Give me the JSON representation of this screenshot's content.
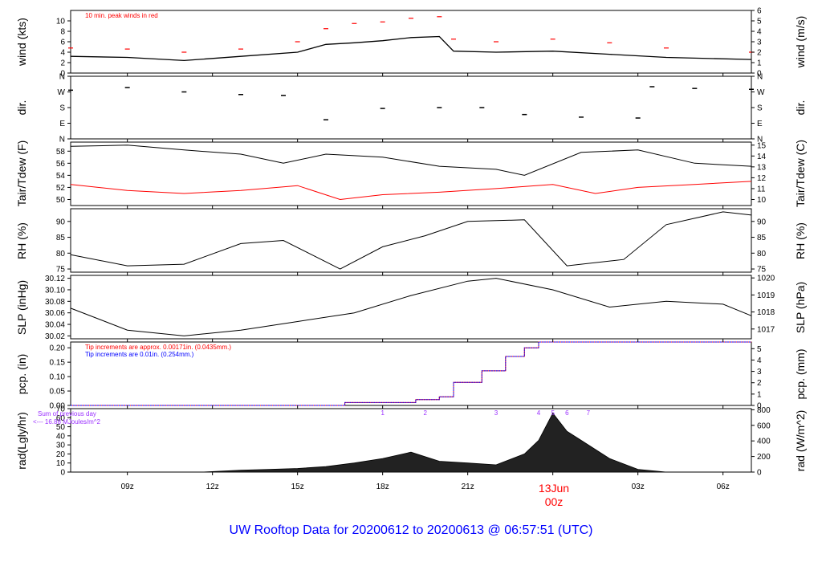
{
  "chart_data": {
    "type": "line",
    "title": "UW Rooftop Data for 20200612  to  20200613 @ 06:57:51  (UTC)",
    "date_marker": {
      "label": "13Jun",
      "sublabel": "00z"
    },
    "x": {
      "unit": "hours UTC",
      "range": [
        "2020-06-12 07:00",
        "2020-06-13 07:00"
      ],
      "ticks": [
        {
          "time": "2020-06-12 09:00",
          "label": "09z"
        },
        {
          "time": "2020-06-12 12:00",
          "label": "12z"
        },
        {
          "time": "2020-06-12 15:00",
          "label": "15z"
        },
        {
          "time": "2020-06-12 18:00",
          "label": "18z"
        },
        {
          "time": "2020-06-12 21:00",
          "label": "21z"
        },
        {
          "time": "2020-06-13 00:00",
          "label": ""
        },
        {
          "time": "2020-06-13 03:00",
          "label": "03z"
        },
        {
          "time": "2020-06-13 06:00",
          "label": "06z"
        }
      ]
    },
    "colors": {
      "primary": "#000000",
      "dewpoint": "#ff0000",
      "gust": "#ff0000",
      "pcp_fine": "#ff0000",
      "pcp_coarse": "#0000ff",
      "accent": "#9b30ff",
      "title": "#0000ff"
    },
    "panels": [
      {
        "id": "wind",
        "ylabel_left": "wind (kts)",
        "ylabel_right": "wind (m/s)",
        "ylim": [
          0,
          12
        ],
        "ylim_right": [
          0,
          6
        ],
        "ticks_left": [
          "0",
          "2",
          "4",
          "6",
          "8",
          "10"
        ],
        "ticks_right": [
          "0",
          "1",
          "2",
          "3",
          "4",
          "5",
          "6"
        ],
        "annotation": "10 min. peak winds in red",
        "series": [
          {
            "name": "wind speed",
            "x": [
              "2020-06-12 07:00",
              "2020-06-12 09:00",
              "2020-06-12 11:00",
              "2020-06-12 13:00",
              "2020-06-12 15:00",
              "2020-06-12 16:00",
              "2020-06-12 17:00",
              "2020-06-12 18:00",
              "2020-06-12 19:00",
              "2020-06-12 20:00",
              "2020-06-12 20:30",
              "2020-06-12 22:00",
              "2020-06-13 00:00",
              "2020-06-13 02:00",
              "2020-06-13 04:00",
              "2020-06-13 07:00"
            ],
            "y": [
              3.2,
              3.0,
              2.4,
              3.2,
              4.0,
              5.5,
              5.8,
              6.2,
              6.8,
              7.0,
              4.2,
              4.0,
              4.2,
              3.6,
              3.0,
              2.6
            ]
          },
          {
            "name": "peak wind",
            "x": [
              "2020-06-12 07:00",
              "2020-06-12 09:00",
              "2020-06-12 11:00",
              "2020-06-12 13:00",
              "2020-06-12 15:00",
              "2020-06-12 16:00",
              "2020-06-12 17:00",
              "2020-06-12 18:00",
              "2020-06-12 19:00",
              "2020-06-12 20:00",
              "2020-06-12 20:30",
              "2020-06-12 22:00",
              "2020-06-13 00:00",
              "2020-06-13 02:00",
              "2020-06-13 04:00",
              "2020-06-13 07:00"
            ],
            "y": [
              4.8,
              4.6,
              4.0,
              4.6,
              6.0,
              8.5,
              9.5,
              9.8,
              10.5,
              10.8,
              6.5,
              6.0,
              6.5,
              5.8,
              4.8,
              4.0
            ]
          }
        ]
      },
      {
        "id": "dir",
        "ylabel_left": "dir.",
        "ylabel_right": "dir.",
        "ylim": [
          0,
          360
        ],
        "ticks": [
          "N",
          "E",
          "S",
          "W",
          "N"
        ],
        "tick_values": [
          0,
          90,
          180,
          270,
          360
        ],
        "series": [
          {
            "name": "wind direction",
            "x": [
              "2020-06-12 07:00",
              "2020-06-12 09:00",
              "2020-06-12 11:00",
              "2020-06-12 13:00",
              "2020-06-12 14:30",
              "2020-06-12 16:00",
              "2020-06-12 18:00",
              "2020-06-12 20:00",
              "2020-06-12 21:30",
              "2020-06-12 23:00",
              "2020-06-13 01:00",
              "2020-06-13 03:00",
              "2020-06-13 03:30",
              "2020-06-13 05:00",
              "2020-06-13 07:00"
            ],
            "y": [
              280,
              295,
              270,
              255,
              250,
              110,
              175,
              180,
              180,
              140,
              125,
              120,
              300,
              290,
              285
            ]
          }
        ]
      },
      {
        "id": "temp",
        "ylabel_left": "Tair/Tdew (F)",
        "ylabel_right": "Tair/Tdew (C)",
        "ylim": [
          49,
          59.5
        ],
        "ticks_left": [
          "50",
          "52",
          "54",
          "56",
          "58"
        ],
        "ticks_right": [
          "10",
          "11",
          "12",
          "13",
          "14",
          "15"
        ],
        "series": [
          {
            "name": "Tair",
            "x": [
              "2020-06-12 07:00",
              "2020-06-12 09:00",
              "2020-06-12 11:00",
              "2020-06-12 13:00",
              "2020-06-12 14:30",
              "2020-06-12 16:00",
              "2020-06-12 18:00",
              "2020-06-12 20:00",
              "2020-06-12 22:00",
              "2020-06-12 23:00",
              "2020-06-13 01:00",
              "2020-06-13 03:00",
              "2020-06-13 05:00",
              "2020-06-13 07:00"
            ],
            "y": [
              58.8,
              59.0,
              58.2,
              57.5,
              56.0,
              57.5,
              57.0,
              55.5,
              55.0,
              54.0,
              57.8,
              58.2,
              56.0,
              55.5
            ]
          },
          {
            "name": "Tdew",
            "x": [
              "2020-06-12 07:00",
              "2020-06-12 09:00",
              "2020-06-12 11:00",
              "2020-06-12 13:00",
              "2020-06-12 15:00",
              "2020-06-12 16:30",
              "2020-06-12 18:00",
              "2020-06-12 20:00",
              "2020-06-12 22:00",
              "2020-06-13 00:00",
              "2020-06-13 01:30",
              "2020-06-13 03:00",
              "2020-06-13 05:00",
              "2020-06-13 07:00"
            ],
            "y": [
              52.5,
              51.5,
              51.0,
              51.5,
              52.3,
              50.0,
              50.8,
              51.2,
              51.8,
              52.5,
              51.0,
              52.0,
              52.5,
              53.0
            ]
          }
        ]
      },
      {
        "id": "rh",
        "ylabel_left": "RH (%)",
        "ylabel_right": "RH (%)",
        "ylim": [
          74,
          94
        ],
        "ticks": [
          "75",
          "80",
          "85",
          "90"
        ],
        "tick_values": [
          75,
          80,
          85,
          90
        ],
        "series": [
          {
            "name": "RH",
            "x": [
              "2020-06-12 07:00",
              "2020-06-12 09:00",
              "2020-06-12 11:00",
              "2020-06-12 13:00",
              "2020-06-12 14:30",
              "2020-06-12 16:30",
              "2020-06-12 18:00",
              "2020-06-12 19:30",
              "2020-06-12 21:00",
              "2020-06-12 23:00",
              "2020-06-13 00:30",
              "2020-06-13 02:30",
              "2020-06-13 04:00",
              "2020-06-13 06:00",
              "2020-06-13 07:00"
            ],
            "y": [
              79.5,
              76.0,
              76.5,
              83.0,
              84.0,
              75.0,
              82.0,
              85.5,
              90.0,
              90.5,
              76.0,
              78.0,
              89.0,
              93.0,
              92.0
            ]
          }
        ]
      },
      {
        "id": "slp",
        "ylabel_left": "SLP (inHg)",
        "ylabel_right": "SLP (hPa)",
        "ylim": [
          30.015,
          30.125
        ],
        "ticks_left": [
          "30.02",
          "30.04",
          "30.06",
          "30.08",
          "30.10",
          "30.12"
        ],
        "ticks_right": [
          "1017",
          "1018",
          "1019",
          "1020"
        ],
        "series": [
          {
            "name": "SLP",
            "x": [
              "2020-06-12 07:00",
              "2020-06-12 09:00",
              "2020-06-12 11:00",
              "2020-06-12 13:00",
              "2020-06-12 15:00",
              "2020-06-12 17:00",
              "2020-06-12 19:00",
              "2020-06-12 21:00",
              "2020-06-12 22:00",
              "2020-06-13 00:00",
              "2020-06-13 02:00",
              "2020-06-13 04:00",
              "2020-06-13 06:00",
              "2020-06-13 07:00"
            ],
            "y": [
              30.068,
              30.03,
              30.02,
              30.03,
              30.045,
              30.06,
              30.09,
              30.115,
              30.12,
              30.1,
              30.07,
              30.08,
              30.075,
              30.055
            ]
          }
        ]
      },
      {
        "id": "pcp",
        "ylabel_left": "pcp. (in)",
        "ylabel_right": "pcp. (mm)",
        "ylim": [
          0,
          0.22
        ],
        "ticks_left": [
          "0.00",
          "0.05",
          "0.10",
          "0.15",
          "0.20"
        ],
        "ticks_right": [
          "0",
          "1",
          "2",
          "3",
          "4",
          "5"
        ],
        "annotations": [
          {
            "text": "Tip increments are approx. 0.00171in. (0.0435mm.)",
            "color": "#ff0000"
          },
          {
            "text": "Tip increments are 0.01in. (0.254mm.)",
            "color": "#0000ff"
          }
        ],
        "series": [
          {
            "name": "cumulative precipitation",
            "x": [
              "2020-06-12 07:00",
              "2020-06-12 16:40",
              "2020-06-12 19:10",
              "2020-06-12 20:00",
              "2020-06-12 20:30",
              "2020-06-12 21:30",
              "2020-06-12 22:20",
              "2020-06-12 23:00",
              "2020-06-12 23:30",
              "2020-06-13 07:00"
            ],
            "y": [
              0.0,
              0.01,
              0.02,
              0.03,
              0.08,
              0.12,
              0.17,
              0.2,
              0.22,
              0.22
            ]
          }
        ]
      },
      {
        "id": "rad",
        "ylabel_left": "rad(Lgly/hr)",
        "ylabel_right": "rad (W/m^2)",
        "ylim": [
          0,
          70
        ],
        "ticks_left": [
          "0",
          "10",
          "20",
          "30",
          "40",
          "50",
          "60",
          "70"
        ],
        "ticks_right": [
          "0",
          "200",
          "400",
          "600",
          "800"
        ],
        "annotation_lines": [
          "Sum of previous day",
          "<--- 16.88 MJoules/m^2"
        ],
        "hour_labels": [
          {
            "time": "2020-06-12 18:00",
            "label": "1"
          },
          {
            "time": "2020-06-12 19:30",
            "label": "2"
          },
          {
            "time": "2020-06-12 22:00",
            "label": "3"
          },
          {
            "time": "2020-06-12 23:30",
            "label": "4"
          },
          {
            "time": "2020-06-13 00:00",
            "label": "5"
          },
          {
            "time": "2020-06-13 00:30",
            "label": "6"
          },
          {
            "time": "2020-06-13 01:15",
            "label": "7"
          }
        ],
        "series": [
          {
            "name": "solar radiation",
            "x": [
              "2020-06-12 11:40",
              "2020-06-12 13:00",
              "2020-06-12 14:00",
              "2020-06-12 15:00",
              "2020-06-12 16:00",
              "2020-06-12 17:00",
              "2020-06-12 18:00",
              "2020-06-12 19:00",
              "2020-06-12 20:00",
              "2020-06-12 21:00",
              "2020-06-12 22:00",
              "2020-06-12 23:00",
              "2020-06-12 23:30",
              "2020-06-13 00:00",
              "2020-06-13 00:30",
              "2020-06-13 01:00",
              "2020-06-13 02:00",
              "2020-06-13 03:00",
              "2020-06-13 04:00"
            ],
            "y": [
              0,
              2,
              3,
              4,
              6,
              10,
              15,
              22,
              12,
              10,
              8,
              20,
              35,
              65,
              45,
              35,
              15,
              3,
              0
            ]
          }
        ]
      }
    ]
  }
}
